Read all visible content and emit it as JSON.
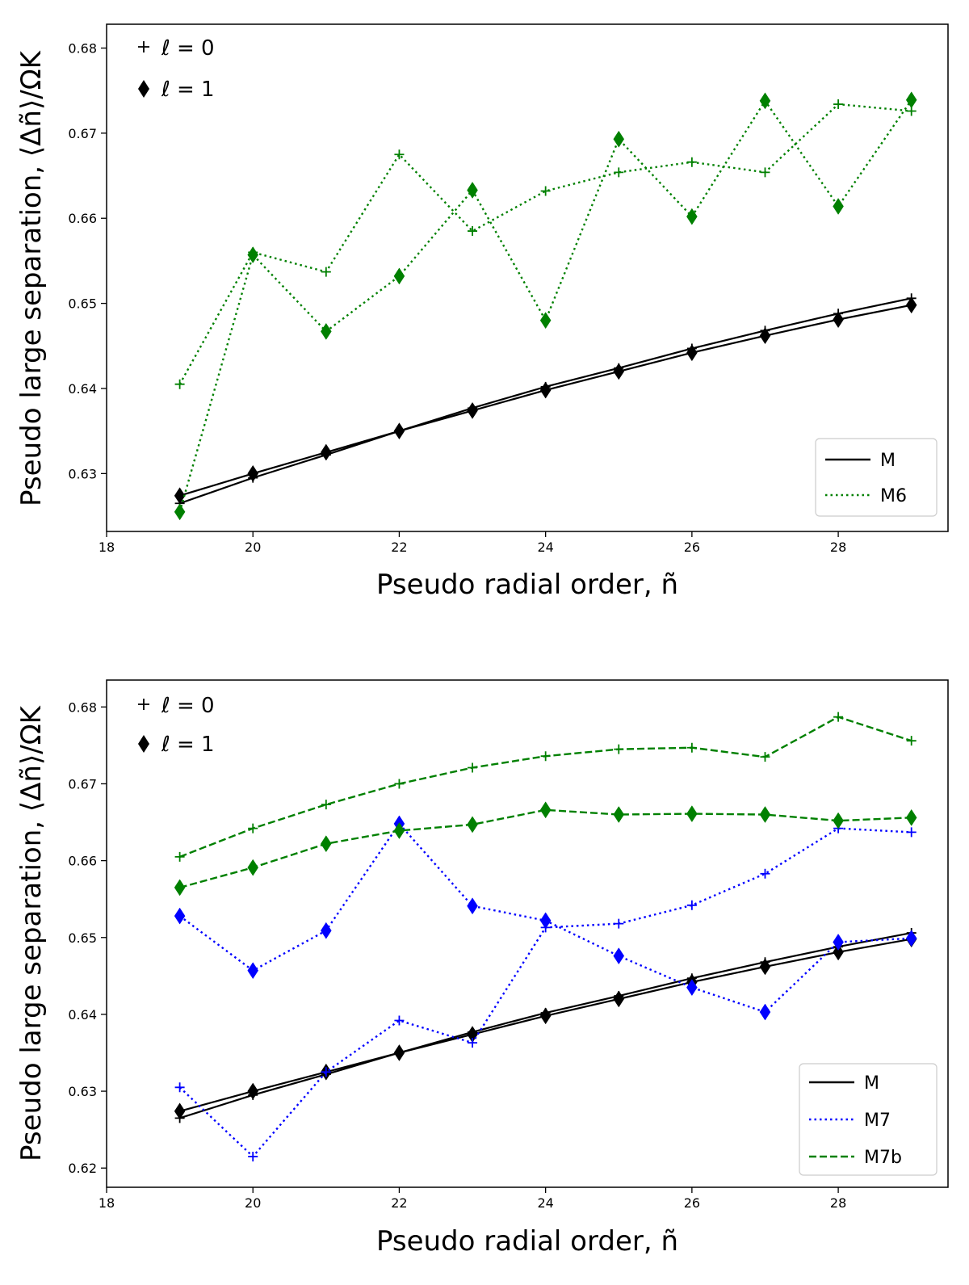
{
  "chart_data": [
    {
      "type": "line",
      "xlabel": "Pseudo radial order, ñ",
      "ylabel": "Pseudo large separation, ⟨Δñ⟩/ΩK",
      "xlim": [
        18,
        29.5
      ],
      "ylim": [
        0.6232,
        0.6828
      ],
      "xticks": [
        18,
        20,
        22,
        24,
        26,
        28
      ],
      "xtick_labels": [
        "18",
        "20",
        "22",
        "24",
        "26",
        "28"
      ],
      "yticks": [
        0.63,
        0.64,
        0.65,
        0.66,
        0.67,
        0.68
      ],
      "ytick_labels": [
        "0.63",
        "0.64",
        "0.65",
        "0.66",
        "0.67",
        "0.68"
      ],
      "marker_legend": [
        "ℓ = 0",
        "ℓ = 1"
      ],
      "legend": [
        {
          "label": "M",
          "style": "solid",
          "color": "#000000"
        },
        {
          "label": "M6",
          "style": "dotted",
          "color": "#008000"
        }
      ],
      "x": [
        19,
        20,
        21,
        22,
        23,
        24,
        25,
        26,
        27,
        28,
        29
      ],
      "series": [
        {
          "name": "M ℓ=0",
          "model": "M",
          "ell": 0,
          "color": "#000000",
          "style": "solid",
          "values": [
            0.6265,
            0.6295,
            0.6322,
            0.635,
            0.6377,
            0.6402,
            0.6424,
            0.6447,
            0.6468,
            0.6488,
            0.6506
          ]
        },
        {
          "name": "M ℓ=1",
          "model": "M",
          "ell": 1,
          "color": "#000000",
          "style": "solid",
          "values": [
            0.6274,
            0.63,
            0.6325,
            0.635,
            0.6374,
            0.6398,
            0.642,
            0.6442,
            0.6462,
            0.6481,
            0.6498
          ]
        },
        {
          "name": "M6 ℓ=0",
          "model": "M6",
          "ell": 0,
          "color": "#008000",
          "style": "dotted",
          "values": [
            0.6405,
            0.656,
            0.6537,
            0.6675,
            0.6585,
            0.6632,
            0.6654,
            0.6666,
            0.6654,
            0.6734,
            0.6726
          ]
        },
        {
          "name": "M6 ℓ=1",
          "model": "M6",
          "ell": 1,
          "color": "#008000",
          "style": "dotted",
          "values": [
            0.6255,
            0.6557,
            0.6467,
            0.6532,
            0.6633,
            0.648,
            0.6693,
            0.6602,
            0.6738,
            0.6614,
            0.6739
          ]
        }
      ]
    },
    {
      "type": "line",
      "xlabel": "Pseudo radial order, ñ",
      "ylabel": "Pseudo large separation, ⟨Δñ⟩/ΩK",
      "xlim": [
        18,
        29.5
      ],
      "ylim": [
        0.6175,
        0.6835
      ],
      "xticks": [
        18,
        20,
        22,
        24,
        26,
        28
      ],
      "xtick_labels": [
        "18",
        "20",
        "22",
        "24",
        "26",
        "28"
      ],
      "yticks": [
        0.62,
        0.63,
        0.64,
        0.65,
        0.66,
        0.67,
        0.68
      ],
      "ytick_labels": [
        "0.62",
        "0.63",
        "0.64",
        "0.65",
        "0.66",
        "0.67",
        "0.68"
      ],
      "marker_legend": [
        "ℓ = 0",
        "ℓ = 1"
      ],
      "legend": [
        {
          "label": "M",
          "style": "solid",
          "color": "#000000"
        },
        {
          "label": "M7",
          "style": "dotted",
          "color": "#0000ff"
        },
        {
          "label": "M7b",
          "style": "dashed",
          "color": "#008000"
        }
      ],
      "x": [
        19,
        20,
        21,
        22,
        23,
        24,
        25,
        26,
        27,
        28,
        29
      ],
      "series": [
        {
          "name": "M ℓ=0",
          "model": "M",
          "ell": 0,
          "color": "#000000",
          "style": "solid",
          "values": [
            0.6265,
            0.6295,
            0.6322,
            0.635,
            0.6377,
            0.6402,
            0.6424,
            0.6447,
            0.6468,
            0.6488,
            0.6506
          ]
        },
        {
          "name": "M ℓ=1",
          "model": "M",
          "ell": 1,
          "color": "#000000",
          "style": "solid",
          "values": [
            0.6274,
            0.63,
            0.6325,
            0.635,
            0.6374,
            0.6398,
            0.642,
            0.6442,
            0.6462,
            0.6481,
            0.6498
          ]
        },
        {
          "name": "M7 ℓ=0",
          "model": "M7",
          "ell": 0,
          "color": "#0000ff",
          "style": "dotted",
          "values": [
            0.6305,
            0.6215,
            0.6325,
            0.6392,
            0.6363,
            0.6513,
            0.6518,
            0.6542,
            0.6583,
            0.6642,
            0.6637
          ]
        },
        {
          "name": "M7 ℓ=1",
          "model": "M7",
          "ell": 1,
          "color": "#0000ff",
          "style": "dotted",
          "values": [
            0.6528,
            0.6457,
            0.6509,
            0.6648,
            0.6541,
            0.6522,
            0.6476,
            0.6435,
            0.6403,
            0.6494,
            0.6499
          ]
        },
        {
          "name": "M7b ℓ=0",
          "model": "M7b",
          "ell": 0,
          "color": "#008000",
          "style": "dashed",
          "values": [
            0.6605,
            0.6642,
            0.6673,
            0.67,
            0.6721,
            0.6736,
            0.6745,
            0.6747,
            0.6735,
            0.6787,
            0.6756
          ]
        },
        {
          "name": "M7b ℓ=1",
          "model": "M7b",
          "ell": 1,
          "color": "#008000",
          "style": "dashed",
          "values": [
            0.6565,
            0.6591,
            0.6622,
            0.6639,
            0.6647,
            0.6666,
            0.666,
            0.6661,
            0.666,
            0.6652,
            0.6656
          ]
        }
      ]
    }
  ]
}
